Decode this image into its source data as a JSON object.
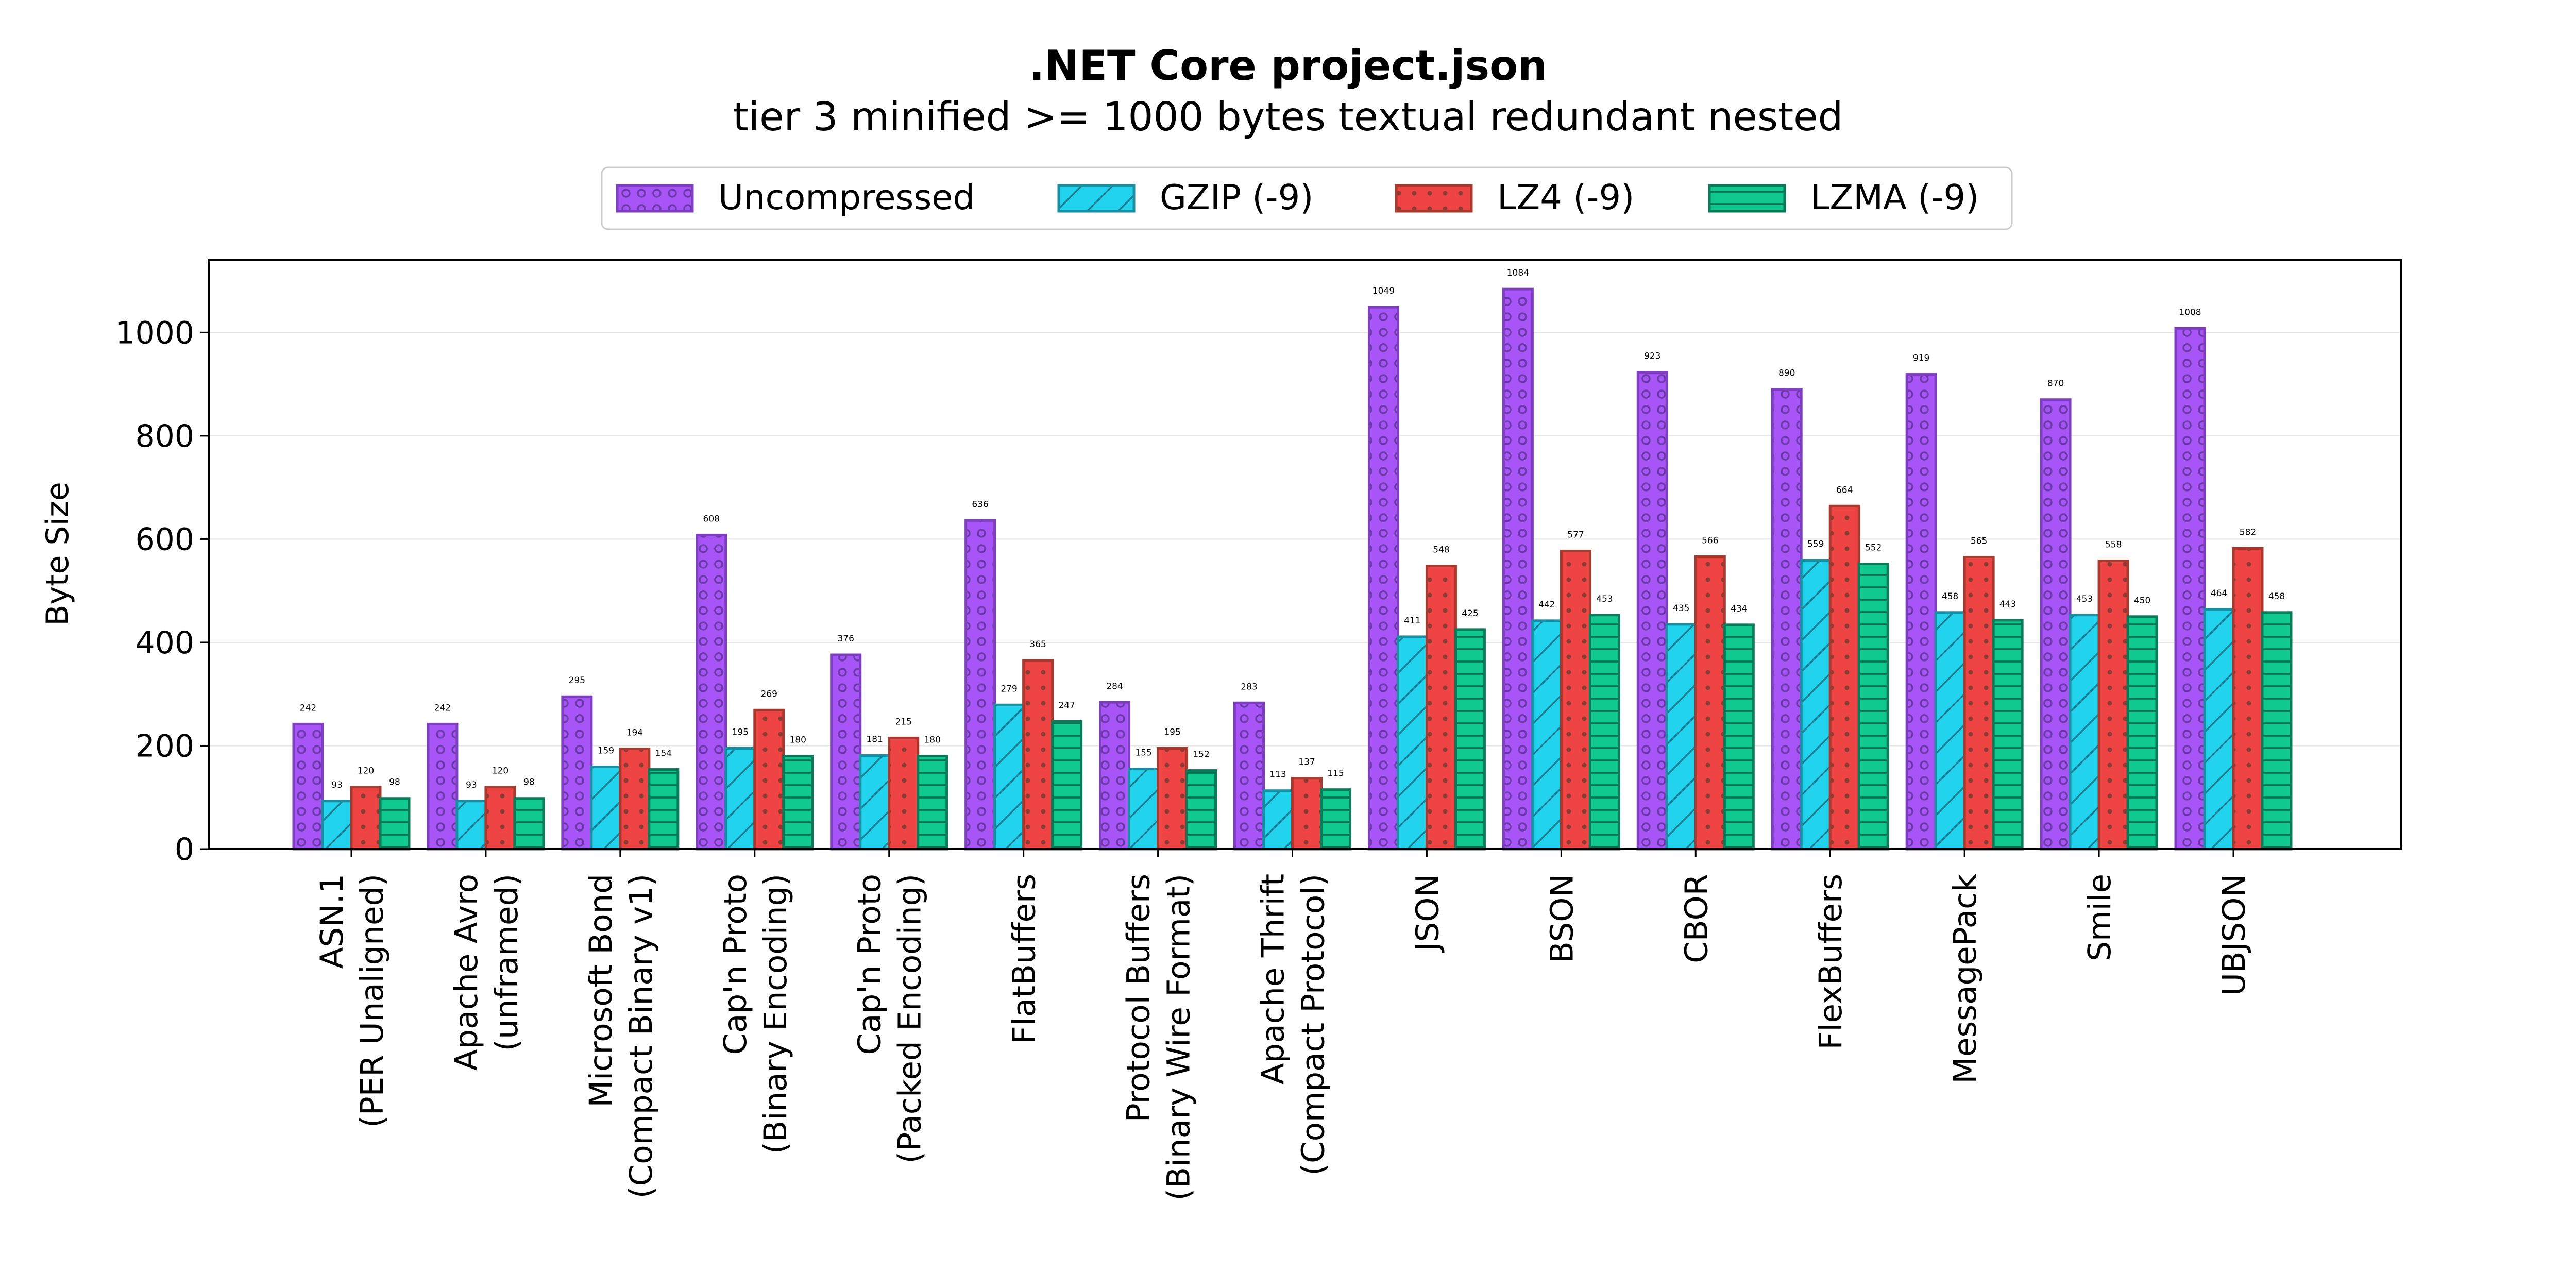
{
  "chart_data": {
    "type": "bar",
    "title": ".NET Core project.json",
    "subtitle": "tier 3 minified >= 1000 bytes textual redundant nested",
    "ylabel": "Byte Size",
    "xlabel": "",
    "ylim": [
      0,
      1140
    ],
    "yticks": [
      0,
      200,
      400,
      600,
      800,
      1000
    ],
    "grid": true,
    "legend_position": "top-center",
    "categories": [
      [
        "ASN.1",
        "(PER Unaligned)"
      ],
      [
        "Apache Avro",
        "(unframed)"
      ],
      [
        "Microsoft Bond",
        "(Compact Binary v1)"
      ],
      [
        "Cap'n Proto",
        "(Binary Encoding)"
      ],
      [
        "Cap'n Proto",
        "(Packed Encoding)"
      ],
      [
        "FlatBuffers"
      ],
      [
        "Protocol Buffers",
        "(Binary Wire Format)"
      ],
      [
        "Apache Thrift",
        "(Compact Protocol)"
      ],
      [
        "JSON"
      ],
      [
        "BSON"
      ],
      [
        "CBOR"
      ],
      [
        "FlexBuffers"
      ],
      [
        "MessagePack"
      ],
      [
        "Smile"
      ],
      [
        "UBJSON"
      ]
    ],
    "series": [
      {
        "name": "Uncompressed",
        "color": "#a855f7",
        "edge": "#7e3fbf",
        "pattern": "circles",
        "values": [
          242,
          242,
          295,
          608,
          376,
          636,
          284,
          283,
          1049,
          1084,
          923,
          890,
          919,
          870,
          1008
        ]
      },
      {
        "name": "GZIP (-9)",
        "color": "#22d3ee",
        "edge": "#1a8fa3",
        "pattern": "diagonal",
        "values": [
          93,
          93,
          159,
          195,
          181,
          279,
          155,
          113,
          411,
          442,
          435,
          559,
          458,
          453,
          464
        ]
      },
      {
        "name": "LZ4 (-9)",
        "color": "#ef4444",
        "edge": "#a63a2e",
        "pattern": "dots",
        "values": [
          120,
          120,
          194,
          269,
          215,
          365,
          195,
          137,
          548,
          577,
          566,
          664,
          565,
          558,
          582
        ]
      },
      {
        "name": "LZMA (-9)",
        "color": "#10c98f",
        "edge": "#0b7a58",
        "pattern": "horizontal",
        "values": [
          98,
          98,
          154,
          180,
          180,
          247,
          152,
          115,
          425,
          453,
          434,
          552,
          443,
          450,
          458
        ]
      }
    ]
  }
}
